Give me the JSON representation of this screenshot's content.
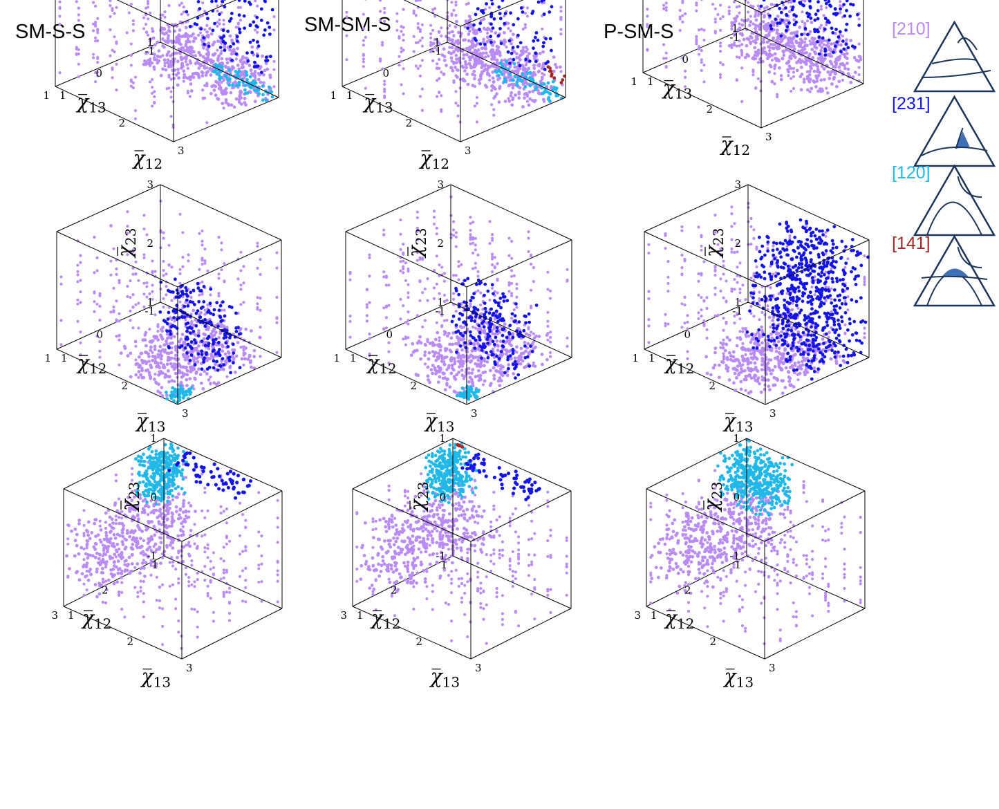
{
  "column_titles": [
    "SM-S-S",
    "SM-SM-S",
    "P-SM-S"
  ],
  "colors": {
    "c210": "#b98bf5",
    "c231": "#1414e6",
    "c120": "#20b8e8",
    "c141": "#a02828",
    "edge": "#000000",
    "triangle": "#1c3458",
    "triangle_fill": "#3f6fb5"
  },
  "legend": {
    "items": [
      {
        "label": "[210]",
        "color": "#b98bf5",
        "icon": "triangle-210-icon"
      },
      {
        "label": "[231]",
        "color": "#1414e6",
        "icon": "triangle-231-icon"
      },
      {
        "label": "[120]",
        "color": "#20b8e8",
        "icon": "triangle-120-icon"
      },
      {
        "label": "[141]",
        "color": "#a02828",
        "icon": "triangle-141-icon"
      }
    ]
  },
  "chart_data": [
    {
      "type": "scatter",
      "row": 1,
      "col": 1,
      "title": "SM-S-S",
      "xlabel": "χ̄12",
      "ylabel": "χ̄13",
      "zlabel": "χ̄23",
      "xlim": [
        1,
        3
      ],
      "ylim": [
        -1,
        1
      ],
      "zlim": [
        1,
        3
      ],
      "tick_labels": {
        "x": [
          "1",
          "2",
          "3"
        ],
        "y": [
          "-1",
          "0",
          "1"
        ],
        "z": [
          "1",
          "2",
          "3"
        ]
      },
      "series": [
        {
          "name": "[210]",
          "color": "#b98bf5"
        },
        {
          "name": "[231]",
          "color": "#1414e6"
        },
        {
          "name": "[120]",
          "color": "#20b8e8"
        }
      ]
    },
    {
      "type": "scatter",
      "row": 1,
      "col": 2,
      "title": "SM-SM-S",
      "xlabel": "χ̄12",
      "ylabel": "χ̄13",
      "zlabel": "χ̄23",
      "xlim": [
        1,
        3
      ],
      "ylim": [
        -1,
        1
      ],
      "zlim": [
        1,
        3
      ],
      "tick_labels": {
        "x": [
          "1",
          "2",
          "3"
        ],
        "y": [
          "-1",
          "0",
          "1"
        ],
        "z": [
          "1",
          "2",
          "3"
        ]
      },
      "series": [
        {
          "name": "[210]",
          "color": "#b98bf5"
        },
        {
          "name": "[231]",
          "color": "#1414e6"
        },
        {
          "name": "[120]",
          "color": "#20b8e8"
        },
        {
          "name": "[141]",
          "color": "#a02828"
        }
      ]
    },
    {
      "type": "scatter",
      "row": 1,
      "col": 3,
      "title": "P-SM-S",
      "xlabel": "χ̄12",
      "ylabel": "χ̄13",
      "zlabel": "χ̄23",
      "xlim": [
        1,
        3
      ],
      "ylim": [
        -1,
        1
      ],
      "zlim": [
        1,
        3
      ],
      "tick_labels": {
        "x": [
          "1",
          "2",
          "3"
        ],
        "y": [
          "-1",
          "0",
          "1"
        ],
        "z": [
          "1",
          "2",
          "3"
        ]
      },
      "series": [
        {
          "name": "[210]",
          "color": "#b98bf5"
        },
        {
          "name": "[231]",
          "color": "#1414e6"
        }
      ]
    },
    {
      "type": "scatter",
      "row": 2,
      "col": 1,
      "xlabel": "χ̄13",
      "ylabel": "χ̄12",
      "zlabel": "χ̄23",
      "xlim": [
        1,
        3
      ],
      "ylim": [
        -1,
        1
      ],
      "zlim": [
        1,
        3
      ],
      "tick_labels": {
        "x": [
          "1",
          "2",
          "3"
        ],
        "y": [
          "-1",
          "0",
          "1"
        ],
        "z": [
          "1",
          "2",
          "3"
        ]
      },
      "series": [
        {
          "name": "[210]",
          "color": "#b98bf5"
        },
        {
          "name": "[231]",
          "color": "#1414e6"
        },
        {
          "name": "[120]",
          "color": "#20b8e8"
        }
      ]
    },
    {
      "type": "scatter",
      "row": 2,
      "col": 2,
      "xlabel": "χ̄13",
      "ylabel": "χ̄12",
      "zlabel": "χ̄23",
      "xlim": [
        1,
        3
      ],
      "ylim": [
        -1,
        1
      ],
      "zlim": [
        1,
        3
      ],
      "tick_labels": {
        "x": [
          "1",
          "2",
          "3"
        ],
        "y": [
          "-1",
          "0",
          "1"
        ],
        "z": [
          "1",
          "2",
          "3"
        ]
      },
      "series": [
        {
          "name": "[210]",
          "color": "#b98bf5"
        },
        {
          "name": "[231]",
          "color": "#1414e6"
        },
        {
          "name": "[120]",
          "color": "#20b8e8"
        }
      ]
    },
    {
      "type": "scatter",
      "row": 2,
      "col": 3,
      "xlabel": "χ̄13",
      "ylabel": "χ̄12",
      "zlabel": "χ̄23",
      "xlim": [
        1,
        3
      ],
      "ylim": [
        -1,
        1
      ],
      "zlim": [
        1,
        3
      ],
      "tick_labels": {
        "x": [
          "1",
          "2",
          "3"
        ],
        "y": [
          "-1",
          "0",
          "1"
        ],
        "z": [
          "1",
          "2",
          "3"
        ]
      },
      "series": [
        {
          "name": "[210]",
          "color": "#b98bf5"
        },
        {
          "name": "[231]",
          "color": "#1414e6"
        }
      ]
    },
    {
      "type": "scatter",
      "row": 3,
      "col": 1,
      "xlabel": "χ̄13",
      "ylabel": "χ̄12",
      "zlabel": "χ̄23",
      "xlim": [
        1,
        3
      ],
      "ylim": [
        1,
        3
      ],
      "zlim": [
        -1,
        1
      ],
      "tick_labels": {
        "x": [
          "1",
          "2",
          "3"
        ],
        "y": [
          "1",
          "2",
          "3"
        ],
        "z": [
          "-1",
          "0",
          "1"
        ]
      },
      "series": [
        {
          "name": "[210]",
          "color": "#b98bf5"
        },
        {
          "name": "[231]",
          "color": "#1414e6"
        },
        {
          "name": "[120]",
          "color": "#20b8e8"
        }
      ]
    },
    {
      "type": "scatter",
      "row": 3,
      "col": 2,
      "xlabel": "χ̄13",
      "ylabel": "χ̄12",
      "zlabel": "χ̄23",
      "xlim": [
        1,
        3
      ],
      "ylim": [
        1,
        3
      ],
      "zlim": [
        -1,
        1
      ],
      "tick_labels": {
        "x": [
          "1",
          "2",
          "3"
        ],
        "y": [
          "1",
          "2",
          "3"
        ],
        "z": [
          "-1",
          "0",
          "1"
        ]
      },
      "series": [
        {
          "name": "[210]",
          "color": "#b98bf5"
        },
        {
          "name": "[231]",
          "color": "#1414e6"
        },
        {
          "name": "[120]",
          "color": "#20b8e8"
        },
        {
          "name": "[141]",
          "color": "#a02828"
        }
      ]
    },
    {
      "type": "scatter",
      "row": 3,
      "col": 3,
      "xlabel": "χ̄13",
      "ylabel": "χ̄12",
      "zlabel": "χ̄23",
      "xlim": [
        1,
        3
      ],
      "ylim": [
        1,
        3
      ],
      "zlim": [
        -1,
        1
      ],
      "tick_labels": {
        "x": [
          "1",
          "2",
          "3"
        ],
        "y": [
          "1",
          "2",
          "3"
        ],
        "z": [
          "-1",
          "0",
          "1"
        ]
      },
      "series": [
        {
          "name": "[210]",
          "color": "#b98bf5"
        },
        {
          "name": "[120]",
          "color": "#20b8e8"
        }
      ]
    }
  ]
}
